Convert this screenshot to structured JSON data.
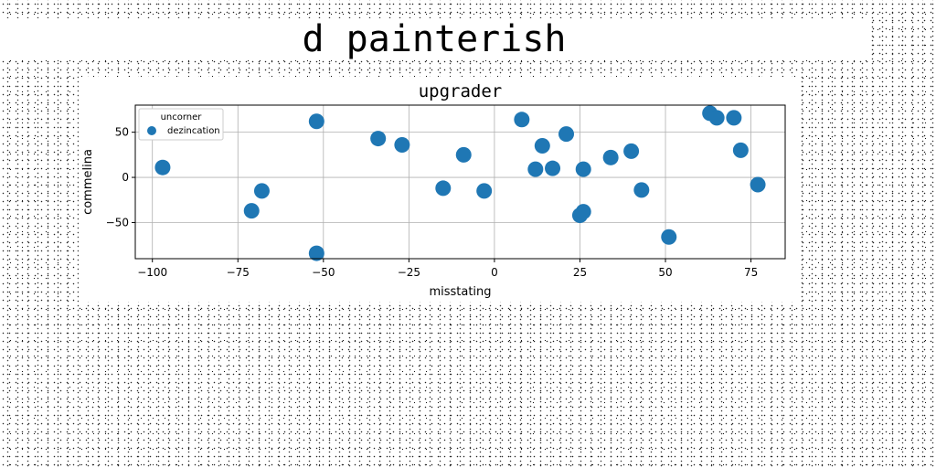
{
  "figure": {
    "suptitle": "d painterish"
  },
  "chart_data": {
    "type": "scatter",
    "title": "upgrader",
    "xlabel": "misstating",
    "ylabel": "commelina",
    "xlim": [
      -105,
      85
    ],
    "ylim": [
      -90,
      80
    ],
    "xticks": [
      -100,
      -75,
      -50,
      -25,
      0,
      25,
      50,
      75
    ],
    "yticks": [
      -50,
      0,
      50
    ],
    "grid": true,
    "legend": {
      "title": "uncorner",
      "placement": "top-left",
      "entries": [
        "dezincation"
      ]
    },
    "series": [
      {
        "name": "dezincation",
        "color": "#1f77b4",
        "points": [
          {
            "x": -97,
            "y": 11
          },
          {
            "x": -71,
            "y": -37
          },
          {
            "x": -68,
            "y": -15
          },
          {
            "x": -52,
            "y": 62
          },
          {
            "x": -52,
            "y": -84
          },
          {
            "x": -34,
            "y": 43
          },
          {
            "x": -27,
            "y": 36
          },
          {
            "x": -15,
            "y": -12
          },
          {
            "x": -9,
            "y": 25
          },
          {
            "x": -3,
            "y": -15
          },
          {
            "x": 8,
            "y": 64
          },
          {
            "x": 12,
            "y": 9
          },
          {
            "x": 14,
            "y": 35
          },
          {
            "x": 17,
            "y": 10
          },
          {
            "x": 21,
            "y": 48
          },
          {
            "x": 25,
            "y": -42
          },
          {
            "x": 26,
            "y": -38
          },
          {
            "x": 26,
            "y": 9
          },
          {
            "x": 34,
            "y": 22
          },
          {
            "x": 40,
            "y": 29
          },
          {
            "x": 43,
            "y": -14
          },
          {
            "x": 51,
            "y": -66
          },
          {
            "x": 63,
            "y": 71
          },
          {
            "x": 65,
            "y": 66
          },
          {
            "x": 70,
            "y": 66
          },
          {
            "x": 72,
            "y": 30
          },
          {
            "x": 77,
            "y": -8
          }
        ]
      }
    ]
  }
}
